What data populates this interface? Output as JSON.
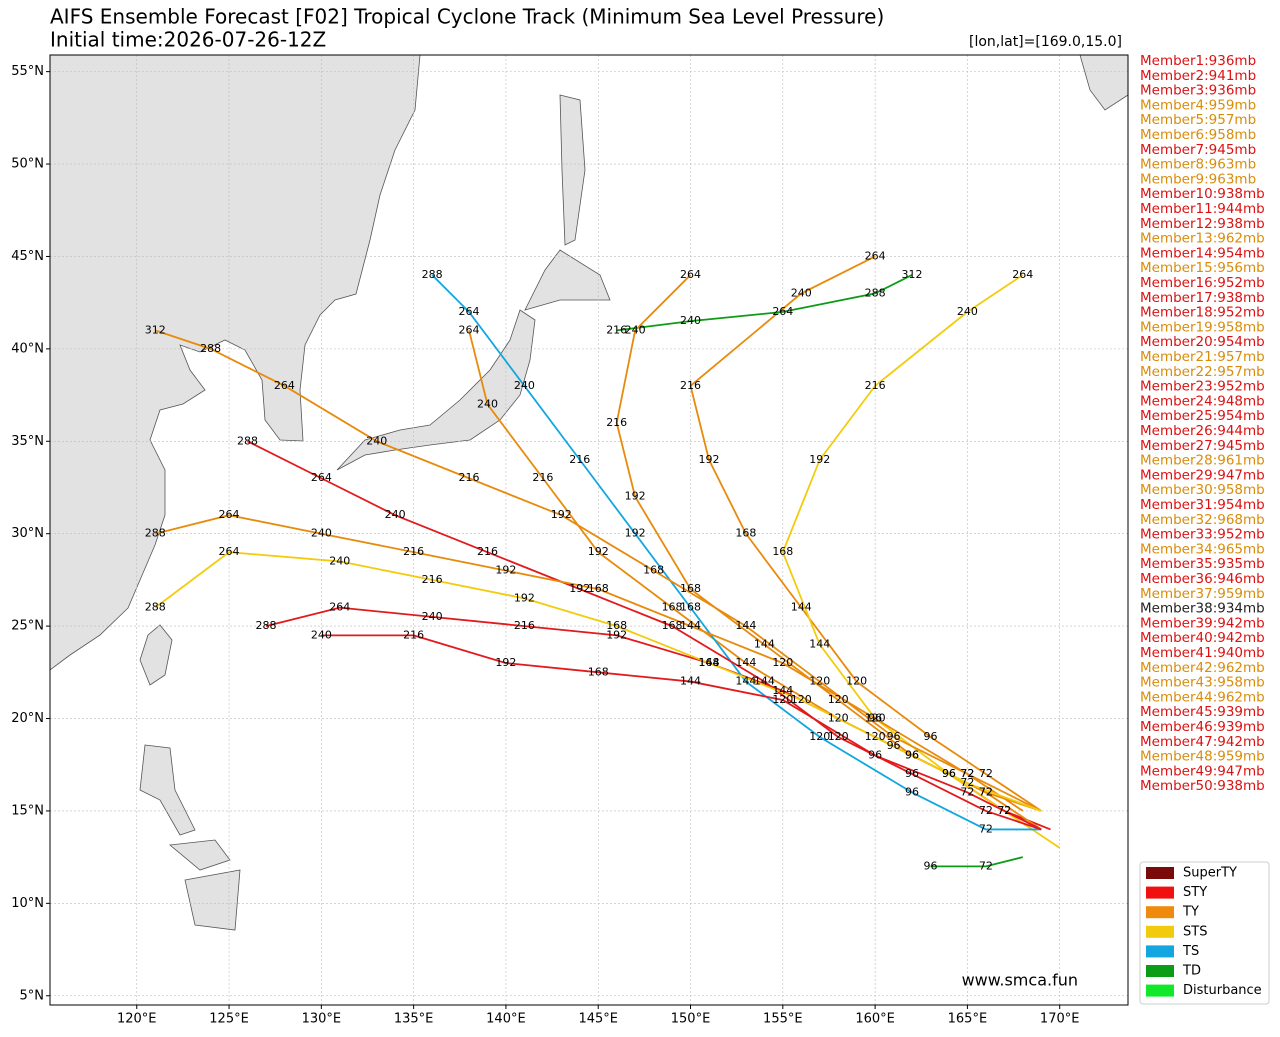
{
  "chart_data": {
    "type": "track",
    "title": "AIFS Ensemble Forecast [F02] Tropical Cyclone Track (Minimum Sea Level Pressure)",
    "subtitle": "Initial time:2026-07-26-12Z",
    "annotation": "[lon,lat]=[169.0,15.0]",
    "watermark": "www.smca.fun",
    "xlim": [
      115.3,
      173.7
    ],
    "ylim": [
      4.5,
      55.9
    ],
    "grid": true,
    "xticks": [
      {
        "value": 120,
        "label": "120°E"
      },
      {
        "value": 125,
        "label": "125°E"
      },
      {
        "value": 130,
        "label": "130°E"
      },
      {
        "value": 135,
        "label": "135°E"
      },
      {
        "value": 140,
        "label": "140°E"
      },
      {
        "value": 145,
        "label": "145°E"
      },
      {
        "value": 150,
        "label": "150°E"
      },
      {
        "value": 155,
        "label": "155°E"
      },
      {
        "value": 160,
        "label": "160°E"
      },
      {
        "value": 165,
        "label": "165°E"
      },
      {
        "value": 170,
        "label": "170°E"
      }
    ],
    "yticks": [
      {
        "value": 5,
        "label": "5°N"
      },
      {
        "value": 10,
        "label": "10°N"
      },
      {
        "value": 15,
        "label": "15°N"
      },
      {
        "value": 20,
        "label": "20°N"
      },
      {
        "value": 25,
        "label": "25°N"
      },
      {
        "value": 30,
        "label": "30°N"
      },
      {
        "value": 35,
        "label": "35°N"
      },
      {
        "value": 40,
        "label": "40°N"
      },
      {
        "value": 45,
        "label": "45°N"
      },
      {
        "value": 50,
        "label": "50°N"
      },
      {
        "value": 55,
        "label": "55°N"
      }
    ],
    "tracks": [
      {
        "color": "#e31a1c",
        "lon": [
          169.5,
          167,
          164,
          160,
          155,
          151,
          146,
          141,
          136,
          131,
          127
        ],
        "lat": [
          14,
          15,
          17,
          19,
          21.5,
          23,
          24.5,
          25,
          25.5,
          26,
          25
        ],
        "hours": [
          null,
          72,
          96,
          120,
          144,
          168,
          192,
          216,
          240,
          264,
          288
        ]
      },
      {
        "color": "#e88a0c",
        "lon": [
          169,
          166,
          162,
          158,
          153,
          149,
          145,
          142,
          139,
          138
        ],
        "lat": [
          15,
          16,
          18,
          20,
          23,
          26,
          29,
          33,
          37,
          41
        ],
        "hours": [
          null,
          72,
          96,
          120,
          144,
          168,
          192,
          216,
          240,
          264
        ]
      },
      {
        "color": "#e88a0c",
        "lon": [
          169,
          166,
          163,
          159,
          156,
          153,
          151,
          150,
          156,
          160
        ],
        "lat": [
          15,
          17,
          19,
          22,
          26,
          30,
          34,
          38,
          43,
          45
        ],
        "hours": [
          null,
          72,
          96,
          120,
          144,
          168,
          192,
          216,
          240,
          264
        ]
      },
      {
        "color": "#f2cc0c",
        "lon": [
          170,
          167,
          164,
          160,
          157,
          155,
          157,
          160,
          165,
          168
        ],
        "lat": [
          13,
          15,
          17,
          20,
          24,
          29,
          34,
          38,
          42,
          44
        ],
        "hours": [
          null,
          72,
          96,
          120,
          144,
          168,
          192,
          216,
          240,
          264
        ]
      },
      {
        "color": "#13a6e0",
        "lon": [
          169,
          166,
          162,
          157,
          153,
          150,
          147,
          144,
          141,
          138,
          136
        ],
        "lat": [
          14,
          14,
          16,
          19,
          22,
          26,
          30,
          34,
          38,
          42,
          44
        ],
        "hours": [
          null,
          72,
          96,
          120,
          144,
          168,
          192,
          216,
          240,
          264,
          288
        ]
      },
      {
        "color": "#e31a1c",
        "lon": [
          169,
          166,
          162,
          158,
          154,
          149,
          144,
          139,
          134,
          130,
          126
        ],
        "lat": [
          14,
          15,
          17,
          19,
          22,
          25,
          27,
          29,
          31,
          33,
          35
        ],
        "hours": [
          null,
          72,
          96,
          120,
          144,
          168,
          192,
          216,
          240,
          264,
          288
        ]
      },
      {
        "color": "#e88a0c",
        "lon": [
          168,
          165,
          161,
          157,
          153,
          148,
          143,
          138,
          133,
          128,
          124,
          121
        ],
        "lat": [
          15,
          17,
          19,
          22,
          25,
          28,
          31,
          33,
          35,
          38,
          40,
          41
        ],
        "hours": [
          null,
          72,
          96,
          120,
          144,
          168,
          192,
          216,
          240,
          264,
          288,
          312
        ]
      },
      {
        "color": "#0c9c16",
        "lon": [
          168,
          166,
          163
        ],
        "lat": [
          12.5,
          12,
          12
        ],
        "hours": [
          null,
          72,
          96
        ]
      },
      {
        "color": "#0c9c16",
        "lon": [
          146,
          150,
          155,
          160,
          162
        ],
        "lat": [
          41,
          41.5,
          42,
          43,
          44
        ],
        "hours": [
          216,
          240,
          264,
          288,
          312
        ]
      },
      {
        "color": "#e88a0c",
        "lon": [
          169,
          166,
          162,
          158,
          154,
          150,
          147,
          146,
          147,
          150
        ],
        "lat": [
          14,
          16,
          18,
          21,
          24,
          27,
          32,
          36,
          41,
          44
        ],
        "hours": [
          null,
          72,
          96,
          120,
          144,
          168,
          192,
          216,
          240,
          264
        ]
      },
      {
        "color": "#e31a1c",
        "lon": [
          169,
          165,
          160,
          155,
          150,
          145,
          140,
          135,
          130
        ],
        "lat": [
          14,
          16,
          18,
          21,
          22,
          22.5,
          23,
          24.5,
          24.5
        ],
        "hours": [
          null,
          72,
          96,
          120,
          144,
          168,
          192,
          216,
          240
        ]
      },
      {
        "color": "#e88a0c",
        "lon": [
          169,
          165,
          160,
          155,
          150,
          145,
          140,
          135,
          130,
          125,
          121
        ],
        "lat": [
          15,
          17,
          20,
          23,
          25,
          27,
          28,
          29,
          30,
          31,
          30
        ],
        "hours": [
          null,
          72,
          96,
          120,
          144,
          168,
          192,
          216,
          240,
          264,
          288
        ]
      },
      {
        "color": "#f2cc0c",
        "lon": [
          169,
          165,
          161,
          156,
          151,
          146,
          141,
          136,
          131,
          125,
          121
        ],
        "lat": [
          15,
          16.5,
          18.5,
          21,
          23,
          25,
          26.5,
          27.5,
          28.5,
          29,
          26
        ],
        "hours": [
          null,
          72,
          96,
          120,
          144,
          168,
          192,
          216,
          240,
          264,
          288
        ]
      }
    ],
    "members": [
      {
        "label": "Member1:936mb",
        "color": "#dd1111"
      },
      {
        "label": "Member2:941mb",
        "color": "#dd1111"
      },
      {
        "label": "Member3:936mb",
        "color": "#dd1111"
      },
      {
        "label": "Member4:959mb",
        "color": "#d98c0a"
      },
      {
        "label": "Member5:957mb",
        "color": "#d98c0a"
      },
      {
        "label": "Member6:958mb",
        "color": "#d98c0a"
      },
      {
        "label": "Member7:945mb",
        "color": "#dd1111"
      },
      {
        "label": "Member8:963mb",
        "color": "#d98c0a"
      },
      {
        "label": "Member9:963mb",
        "color": "#d98c0a"
      },
      {
        "label": "Member10:938mb",
        "color": "#dd1111"
      },
      {
        "label": "Member11:944mb",
        "color": "#dd1111"
      },
      {
        "label": "Member12:938mb",
        "color": "#dd1111"
      },
      {
        "label": "Member13:962mb",
        "color": "#d98c0a"
      },
      {
        "label": "Member14:954mb",
        "color": "#dd1111"
      },
      {
        "label": "Member15:956mb",
        "color": "#d98c0a"
      },
      {
        "label": "Member16:952mb",
        "color": "#dd1111"
      },
      {
        "label": "Member17:938mb",
        "color": "#dd1111"
      },
      {
        "label": "Member18:952mb",
        "color": "#dd1111"
      },
      {
        "label": "Member19:958mb",
        "color": "#d98c0a"
      },
      {
        "label": "Member20:954mb",
        "color": "#dd1111"
      },
      {
        "label": "Member21:957mb",
        "color": "#d98c0a"
      },
      {
        "label": "Member22:957mb",
        "color": "#d98c0a"
      },
      {
        "label": "Member23:952mb",
        "color": "#dd1111"
      },
      {
        "label": "Member24:948mb",
        "color": "#dd1111"
      },
      {
        "label": "Member25:954mb",
        "color": "#dd1111"
      },
      {
        "label": "Member26:944mb",
        "color": "#dd1111"
      },
      {
        "label": "Member27:945mb",
        "color": "#dd1111"
      },
      {
        "label": "Member28:961mb",
        "color": "#d98c0a"
      },
      {
        "label": "Member29:947mb",
        "color": "#dd1111"
      },
      {
        "label": "Member30:958mb",
        "color": "#d98c0a"
      },
      {
        "label": "Member31:954mb",
        "color": "#dd1111"
      },
      {
        "label": "Member32:968mb",
        "color": "#d98c0a"
      },
      {
        "label": "Member33:952mb",
        "color": "#dd1111"
      },
      {
        "label": "Member34:965mb",
        "color": "#d98c0a"
      },
      {
        "label": "Member35:935mb",
        "color": "#dd1111"
      },
      {
        "label": "Member36:946mb",
        "color": "#dd1111"
      },
      {
        "label": "Member37:959mb",
        "color": "#d98c0a"
      },
      {
        "label": "Member38:934mb",
        "color": "#222222"
      },
      {
        "label": "Member39:942mb",
        "color": "#dd1111"
      },
      {
        "label": "Member40:942mb",
        "color": "#dd1111"
      },
      {
        "label": "Member41:940mb",
        "color": "#dd1111"
      },
      {
        "label": "Member42:962mb",
        "color": "#d98c0a"
      },
      {
        "label": "Member43:958mb",
        "color": "#d98c0a"
      },
      {
        "label": "Member44:962mb",
        "color": "#d98c0a"
      },
      {
        "label": "Member45:939mb",
        "color": "#dd1111"
      },
      {
        "label": "Member46:939mb",
        "color": "#dd1111"
      },
      {
        "label": "Member47:942mb",
        "color": "#dd1111"
      },
      {
        "label": "Member48:959mb",
        "color": "#d98c0a"
      },
      {
        "label": "Member49:947mb",
        "color": "#dd1111"
      },
      {
        "label": "Member50:938mb",
        "color": "#dd1111"
      }
    ],
    "legend": [
      {
        "name": "SuperTY",
        "color": "#7a0a0a"
      },
      {
        "name": "STY",
        "color": "#f01010"
      },
      {
        "name": "TY",
        "color": "#f08a0c"
      },
      {
        "name": "STS",
        "color": "#f2cc0c"
      },
      {
        "name": "TS",
        "color": "#13a6e0"
      },
      {
        "name": "TD",
        "color": "#0c9c16"
      },
      {
        "name": "Disturbance",
        "color": "#11e82a"
      }
    ]
  }
}
